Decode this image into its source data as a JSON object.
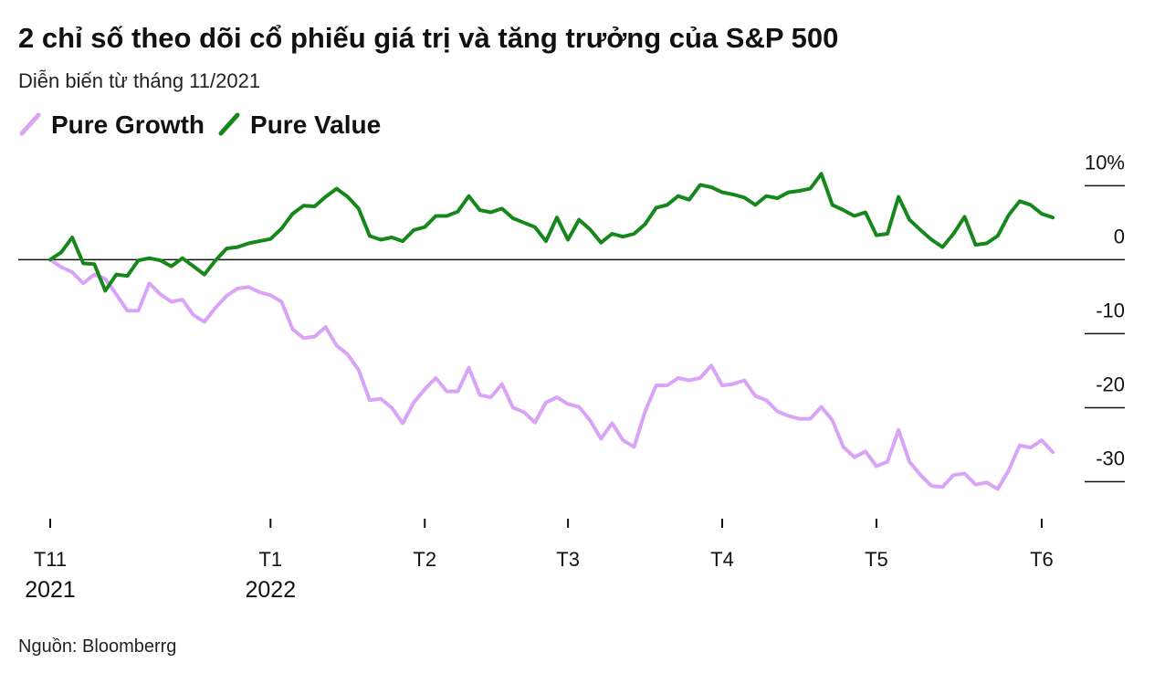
{
  "chart_data": {
    "type": "line",
    "title": "2 chỉ số theo dõi cổ phiếu giá trị  và tăng trưởng của S&P 500",
    "subtitle": "Diễn biến từ tháng 11/2021",
    "source": "Nguồn: Bloomberrg",
    "categories": [
      "T11",
      null,
      null,
      null,
      null,
      null,
      null,
      null,
      null,
      null,
      null,
      null,
      null,
      null,
      null,
      null,
      null,
      null,
      null,
      null,
      "T1",
      null,
      null,
      null,
      null,
      null,
      null,
      null,
      null,
      null,
      null,
      null,
      null,
      null,
      "T2",
      null,
      null,
      null,
      null,
      null,
      null,
      null,
      null,
      null,
      null,
      null,
      null,
      "T3",
      null,
      null,
      null,
      null,
      null,
      null,
      null,
      null,
      null,
      null,
      null,
      null,
      null,
      "T4",
      null,
      null,
      null,
      null,
      null,
      null,
      null,
      null,
      null,
      null,
      null,
      null,
      null,
      "T5",
      null,
      null,
      null,
      null,
      null,
      null,
      null,
      null,
      null,
      null,
      null,
      null,
      null,
      null,
      "T6",
      null
    ],
    "year_labels": [
      "2021",
      "2022"
    ],
    "series": [
      {
        "name": "Pure Growth",
        "color": "#d9a3f7",
        "values": [
          0,
          -1,
          -1.7,
          -3.2,
          -2,
          -2.6,
          -4.7,
          -6.9,
          -6.9,
          -3.2,
          -4.7,
          -5.7,
          -5.4,
          -7.5,
          -8.4,
          -6.5,
          -4.9,
          -3.9,
          -3.7,
          -4.4,
          -4.8,
          -5.7,
          -9.4,
          -10.6,
          -10.4,
          -9.1,
          -11.6,
          -12.8,
          -14.9,
          -19,
          -18.8,
          -20,
          -22.1,
          -19.3,
          -17.5,
          -16,
          -17.8,
          -17.8,
          -14.6,
          -18.3,
          -18.6,
          -16.8,
          -20,
          -20.6,
          -22,
          -19.3,
          -18.6,
          -19.5,
          -19.9,
          -21.7,
          -24.2,
          -22.1,
          -24.4,
          -25.3,
          -20.5,
          -17,
          -17,
          -16,
          -16.3,
          -16,
          -14.3,
          -17,
          -16.8,
          -16.3,
          -18.4,
          -19,
          -20.5,
          -21.1,
          -21.5,
          -21.5,
          -19.9,
          -21.7,
          -25.3,
          -26.7,
          -25.9,
          -27.9,
          -27.3,
          -23,
          -27.3,
          -29.1,
          -30.6,
          -30.7,
          -29.1,
          -28.9,
          -30.4,
          -30.1,
          -31,
          -28.5,
          -25.1,
          -25.4,
          -24.4,
          -26
        ]
      },
      {
        "name": "Pure Value",
        "color": "#16871a",
        "values": [
          0,
          1,
          3,
          -0.5,
          -0.6,
          -4.2,
          -2,
          -2.2,
          -0.1,
          0.2,
          -0.1,
          -0.9,
          0.2,
          -0.9,
          -2,
          -0.1,
          1.5,
          1.7,
          2.2,
          2.5,
          2.8,
          4.2,
          6.2,
          7.3,
          7.2,
          8.5,
          9.6,
          8.5,
          6.9,
          3.2,
          2.7,
          3,
          2.5,
          4,
          4.4,
          5.9,
          5.9,
          6.5,
          8.6,
          6.7,
          6.4,
          6.9,
          5.6,
          5,
          4.4,
          2.5,
          5.7,
          2.7,
          5.4,
          4.1,
          2.3,
          3.5,
          3.1,
          3.5,
          4.8,
          7,
          7.4,
          8.6,
          8.1,
          10.1,
          9.8,
          9.1,
          8.8,
          8.4,
          7.4,
          8.6,
          8.3,
          9.1,
          9.3,
          9.6,
          11.6,
          7.4,
          6.7,
          5.9,
          6.4,
          3.3,
          3.5,
          8.5,
          5.4,
          4,
          2.7,
          1.7,
          3.5,
          5.8,
          2,
          2.2,
          3.2,
          6,
          7.9,
          7.4,
          6.2,
          5.7
        ]
      }
    ],
    "ylim": [
      -35,
      13
    ],
    "yticks": [
      {
        "value": 10,
        "label": "10%"
      },
      0,
      -10,
      -20,
      -30
    ]
  }
}
